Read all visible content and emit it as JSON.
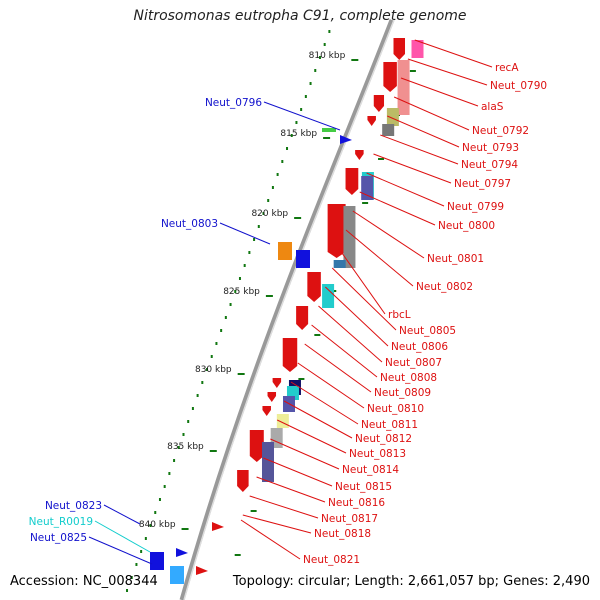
{
  "header": {
    "title": "Nitrosomonas eutropha C91, complete genome"
  },
  "footer": {
    "accession": "Accession: NC_008344",
    "summary": "Topology: circular; Length: 2,661,057 bp; Genes: 2,490"
  },
  "colors": {
    "red": "#dd1111",
    "blue": "#1111cc",
    "cyan": "#11cccc",
    "green": "#117711",
    "backbone": "#888888"
  },
  "scale": {
    "ticks": [
      "810 kbp",
      "815 kbp",
      "820 kbp",
      "825 kbp",
      "830 kbp",
      "835 kbp",
      "840 kbp"
    ]
  },
  "labels": {
    "right": [
      "recA",
      "Neut_0790",
      "alaS",
      "Neut_0792",
      "Neut_0793",
      "Neut_0794",
      "Neut_0797",
      "Neut_0799",
      "Neut_0800",
      "Neut_0801",
      "Neut_0802",
      "rbcL",
      "Neut_0805",
      "Neut_0806",
      "Neut_0807",
      "Neut_0808",
      "Neut_0809",
      "Neut_0810",
      "Neut_0811",
      "Neut_0812",
      "Neut_0813",
      "Neut_0814",
      "Neut_0815",
      "Neut_0816",
      "Neut_0817",
      "Neut_0818",
      "Neut_0821"
    ],
    "left": [
      "Neut_0796",
      "Neut_0803",
      "Neut_0823",
      "Neut_R0019",
      "Neut_0825"
    ]
  }
}
